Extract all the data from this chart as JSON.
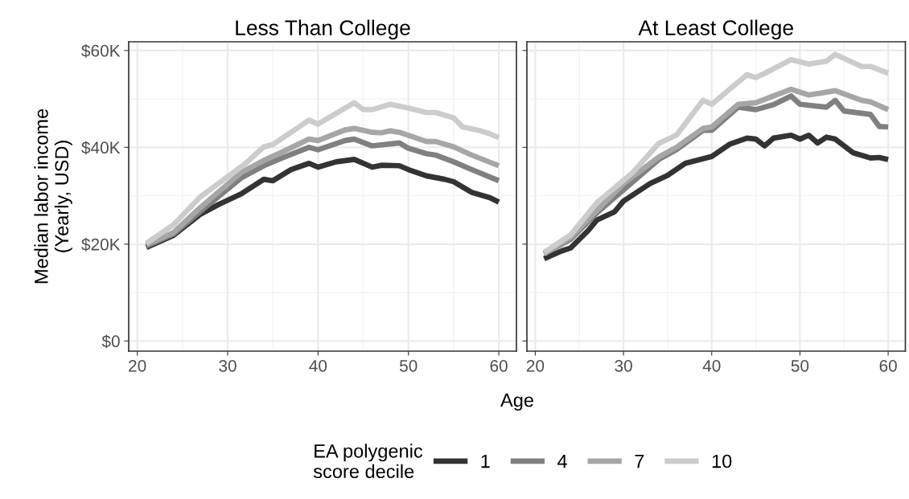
{
  "chart_data": [
    {
      "type": "line",
      "title": "Less Than College",
      "ylabel": "Median labor income\n(Yearly, USD)",
      "xlabel": "Age",
      "legend_title": "EA polygenic\nscore decile",
      "legend": "bottom",
      "grid": true,
      "xlim": [
        19.05,
        61.95
      ],
      "xticks": [
        20,
        30,
        40,
        50,
        60
      ],
      "ylim": [
        -2.1,
        61.8
      ],
      "yticks": [
        {
          "value": 0,
          "label": "$0"
        },
        {
          "value": 20,
          "label": "$20K"
        },
        {
          "value": 40,
          "label": "$40K"
        },
        {
          "value": 60,
          "label": "$60K"
        }
      ],
      "series": [
        {
          "name": "1",
          "color": "#333333",
          "x": [
            21,
            24,
            27,
            29,
            31.5,
            34,
            35,
            37,
            39,
            40,
            42,
            44,
            46,
            47,
            49,
            50,
            52,
            54,
            55,
            57,
            59,
            60
          ],
          "values": [
            19.3,
            21.8,
            26.2,
            28.2,
            30.4,
            33.4,
            33.1,
            35.4,
            36.7,
            35.9,
            37,
            37.5,
            35.9,
            36.3,
            36.2,
            35.4,
            34.1,
            33.4,
            32.9,
            30.7,
            29.6,
            28.7
          ]
        },
        {
          "name": "4",
          "color": "#808080",
          "x": [
            21,
            24,
            27,
            31.5,
            34,
            36,
            39,
            40,
            43,
            44,
            46,
            49,
            50,
            52,
            53,
            55,
            57,
            60
          ],
          "values": [
            19.6,
            22.1,
            26.8,
            33.7,
            36.2,
            37.8,
            40,
            39.5,
            41.4,
            41.7,
            40.3,
            40.9,
            39.8,
            38.7,
            38.4,
            37,
            35.4,
            33.1
          ]
        },
        {
          "name": "7",
          "color": "#a6a6a6",
          "x": [
            21,
            24,
            27,
            31.5,
            34,
            36,
            39,
            40,
            43,
            44,
            46,
            47,
            48,
            49,
            52,
            53,
            55,
            57,
            60
          ],
          "values": [
            19.9,
            22.4,
            27.6,
            34.8,
            37.3,
            39,
            41.7,
            41.4,
            43.6,
            43.9,
            43.1,
            43,
            43.4,
            43.1,
            41.2,
            41.2,
            40.1,
            38.4,
            36.2
          ]
        },
        {
          "name": "10",
          "color": "#cccccc",
          "x": [
            21,
            24,
            27,
            32,
            34,
            35,
            37,
            39,
            40,
            42,
            44,
            45,
            46,
            48,
            50,
            52,
            53,
            55,
            56,
            58,
            59,
            60
          ],
          "values": [
            20.2,
            24,
            29.8,
            36.7,
            40.1,
            40.6,
            43.1,
            45.6,
            44.8,
            47,
            49.2,
            47.8,
            47.8,
            48.9,
            48.1,
            47.2,
            47.2,
            46.1,
            44.2,
            43.4,
            42.8,
            42
          ]
        }
      ]
    },
    {
      "type": "line",
      "title": "At Least College",
      "tick_labels": "x",
      "grid": true,
      "xlim": [
        19.05,
        61.95
      ],
      "xticks": [
        20,
        30,
        40,
        50,
        60
      ],
      "ylim": [
        -2.1,
        61.8
      ],
      "yticks": [
        {
          "value": 0,
          "label": null
        },
        {
          "value": 20,
          "label": null
        },
        {
          "value": 40,
          "label": null
        },
        {
          "value": 60,
          "label": null
        }
      ],
      "series": [
        {
          "name": "1",
          "color": "#333333",
          "x": [
            21,
            23,
            24,
            26,
            27,
            29,
            30,
            33,
            35,
            37,
            40,
            42,
            44,
            45,
            46,
            47,
            49,
            50,
            51,
            52,
            53,
            54,
            56,
            58,
            59,
            60
          ],
          "values": [
            17,
            18.6,
            19.2,
            22.8,
            25,
            26.7,
            28.9,
            32.5,
            34.2,
            36.7,
            38.1,
            40.6,
            41.9,
            41.7,
            40.3,
            41.9,
            42.5,
            41.7,
            42.5,
            40.9,
            42.1,
            41.7,
            38.9,
            37.8,
            37.9,
            37.5
          ]
        },
        {
          "name": "4",
          "color": "#808080",
          "x": [
            21,
            24,
            27,
            34,
            36,
            39,
            40,
            43,
            45,
            47,
            49,
            50,
            53,
            54,
            55,
            58,
            59,
            60
          ],
          "values": [
            18,
            21,
            26.5,
            37.5,
            39.5,
            43.5,
            43.5,
            48.3,
            47.8,
            48.8,
            50.6,
            48.9,
            48.3,
            49.7,
            47.5,
            46.8,
            44.3,
            44.2
          ]
        },
        {
          "name": "7",
          "color": "#a6a6a6",
          "x": [
            21,
            24,
            27,
            30,
            34,
            36,
            39,
            40,
            43,
            45,
            47,
            49,
            51,
            54,
            57,
            58,
            60
          ],
          "values": [
            18,
            21.4,
            27,
            32.5,
            38,
            40,
            43.9,
            44.2,
            48.9,
            49.2,
            50.6,
            52,
            50.8,
            51.7,
            49.7,
            49.4,
            47.8
          ]
        },
        {
          "name": "10",
          "color": "#cccccc",
          "x": [
            21,
            24,
            27,
            31,
            34,
            36,
            39,
            40,
            44,
            45,
            46,
            49,
            51,
            53,
            54,
            57,
            58,
            60
          ],
          "values": [
            18.3,
            21.9,
            28.6,
            34.7,
            40.8,
            42.5,
            49.7,
            48.9,
            55,
            54.4,
            55.3,
            58.1,
            57.2,
            57.8,
            59.2,
            56.7,
            56.7,
            55.3
          ]
        }
      ]
    }
  ]
}
